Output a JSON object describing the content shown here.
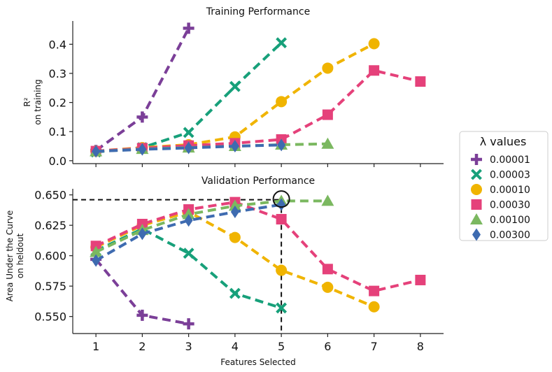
{
  "chart_data": [
    {
      "type": "line",
      "title": "Training Performance",
      "ylabel_line1": "R²",
      "ylabel_line2": "on training",
      "xlabel": "",
      "xlim": [
        0.5,
        8.5
      ],
      "ylim": [
        -0.01,
        0.48
      ],
      "x_ticks": [
        1,
        2,
        3,
        4,
        5,
        6,
        7,
        8
      ],
      "y_ticks": [
        0.0,
        0.1,
        0.2,
        0.3,
        0.4
      ],
      "y_tick_labels": [
        "0.0",
        "0.1",
        "0.2",
        "0.3",
        "0.4"
      ],
      "series": [
        {
          "name": "0.00001",
          "color": "#7b3f98",
          "marker": "plus",
          "x": [
            1,
            2,
            3
          ],
          "values": [
            0.035,
            0.15,
            0.455
          ]
        },
        {
          "name": "0.00003",
          "color": "#17a07a",
          "marker": "x",
          "x": [
            1,
            2,
            3,
            4,
            5
          ],
          "values": [
            0.03,
            0.045,
            0.097,
            0.255,
            0.405
          ]
        },
        {
          "name": "0.00010",
          "color": "#f0b400",
          "marker": "circle",
          "x": [
            1,
            2,
            3,
            4,
            5,
            6,
            7
          ],
          "values": [
            0.033,
            0.045,
            0.055,
            0.082,
            0.203,
            0.318,
            0.402
          ]
        },
        {
          "name": "0.00030",
          "color": "#e5417a",
          "marker": "square",
          "x": [
            1,
            2,
            3,
            4,
            5,
            6,
            7,
            8
          ],
          "values": [
            0.033,
            0.043,
            0.052,
            0.06,
            0.073,
            0.158,
            0.31,
            0.272
          ]
        },
        {
          "name": "0.00100",
          "color": "#7bb860",
          "marker": "triangle",
          "x": [
            1,
            2,
            3,
            4,
            5,
            6
          ],
          "values": [
            0.032,
            0.04,
            0.045,
            0.05,
            0.055,
            0.058
          ]
        },
        {
          "name": "0.00300",
          "color": "#3e6bb0",
          "marker": "diamond",
          "x": [
            1,
            2,
            3,
            4,
            5
          ],
          "values": [
            0.032,
            0.039,
            0.044,
            0.05,
            0.054
          ]
        }
      ]
    },
    {
      "type": "line",
      "title": "Validation Performance",
      "ylabel_line1": "Area Under the Curve",
      "ylabel_line2": "on heldout",
      "xlabel": "Features Selected",
      "xlim": [
        0.5,
        8.5
      ],
      "ylim": [
        0.536,
        0.655
      ],
      "x_ticks": [
        1,
        2,
        3,
        4,
        5,
        6,
        7,
        8
      ],
      "x_tick_labels": [
        "1",
        "2",
        "3",
        "4",
        "5",
        "6",
        "7",
        "8"
      ],
      "y_ticks": [
        0.55,
        0.575,
        0.6,
        0.625,
        0.65
      ],
      "y_tick_labels": [
        "0.550",
        "0.575",
        "0.600",
        "0.625",
        "0.650"
      ],
      "series": [
        {
          "name": "0.00001",
          "color": "#7b3f98",
          "marker": "plus",
          "x": [
            1,
            2,
            3
          ],
          "values": [
            0.597,
            0.551,
            0.544
          ]
        },
        {
          "name": "0.00003",
          "color": "#17a07a",
          "marker": "x",
          "x": [
            1,
            2,
            3,
            4,
            5
          ],
          "values": [
            0.604,
            0.622,
            0.602,
            0.569,
            0.557
          ]
        },
        {
          "name": "0.00010",
          "color": "#f0b400",
          "marker": "circle",
          "x": [
            1,
            2,
            3,
            4,
            5,
            6,
            7
          ],
          "values": [
            0.607,
            0.625,
            0.636,
            0.615,
            0.588,
            0.574,
            0.558
          ]
        },
        {
          "name": "0.00030",
          "color": "#e5417a",
          "marker": "square",
          "x": [
            1,
            2,
            3,
            4,
            5,
            6,
            7,
            8
          ],
          "values": [
            0.608,
            0.626,
            0.638,
            0.644,
            0.63,
            0.589,
            0.571,
            0.58
          ]
        },
        {
          "name": "0.00100",
          "color": "#7bb860",
          "marker": "triangle",
          "x": [
            1,
            2,
            3,
            4,
            5,
            6
          ],
          "values": [
            0.603,
            0.621,
            0.634,
            0.641,
            0.645,
            0.645
          ]
        },
        {
          "name": "0.00300",
          "color": "#3e6bb0",
          "marker": "diamond",
          "x": [
            1,
            2,
            3,
            4,
            5
          ],
          "values": [
            0.596,
            0.618,
            0.629,
            0.636,
            0.642
          ]
        }
      ],
      "annotation": {
        "type": "best-point-circle",
        "x": 5,
        "y": 0.646,
        "label": "selected point"
      }
    }
  ],
  "legend": {
    "title": "λ values",
    "placement": "right",
    "entries": [
      {
        "name": "0.00001",
        "color": "#7b3f98",
        "marker": "plus"
      },
      {
        "name": "0.00003",
        "color": "#17a07a",
        "marker": "x"
      },
      {
        "name": "0.00010",
        "color": "#f0b400",
        "marker": "circle"
      },
      {
        "name": "0.00030",
        "color": "#e5417a",
        "marker": "square"
      },
      {
        "name": "0.00100",
        "color": "#7bb860",
        "marker": "triangle"
      },
      {
        "name": "0.00300",
        "color": "#3e6bb0",
        "marker": "diamond"
      }
    ]
  }
}
